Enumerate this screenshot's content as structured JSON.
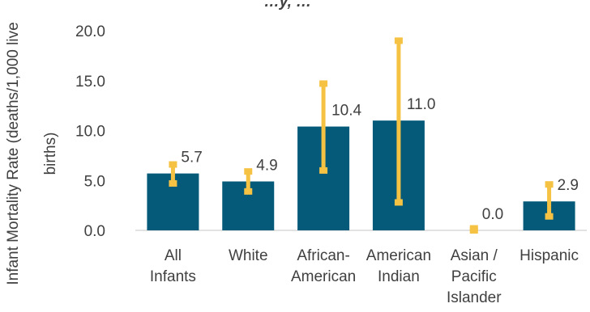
{
  "chart_data": {
    "type": "bar",
    "title": "…y, …",
    "ylabel_lines": [
      "Infant Mortality Rate (deaths/1,000 live",
      "births)"
    ],
    "categories": [
      [
        "All",
        "Infants"
      ],
      [
        "White"
      ],
      [
        "African-",
        "American"
      ],
      [
        "American",
        "Indian"
      ],
      [
        "Asian /",
        "Pacific",
        "Islander"
      ],
      [
        "Hispanic"
      ]
    ],
    "values": [
      5.7,
      4.9,
      10.4,
      11.0,
      0.0,
      2.9
    ],
    "value_labels": [
      "5.7",
      "4.9",
      "10.4",
      "11.0",
      "0.0",
      "2.9"
    ],
    "error_low": [
      4.7,
      3.9,
      6.0,
      2.8,
      0.0,
      1.4
    ],
    "error_high": [
      6.6,
      5.9,
      14.7,
      19.0,
      0.2,
      4.6
    ],
    "yticks": [
      "0.0",
      "5.0",
      "10.0",
      "15.0",
      "20.0"
    ],
    "ylim": [
      0,
      20
    ],
    "grid": false,
    "colors": {
      "bar": "#055a7a",
      "error": "#f5c243",
      "text": "#404040",
      "axis": "#d9d9d9"
    }
  }
}
